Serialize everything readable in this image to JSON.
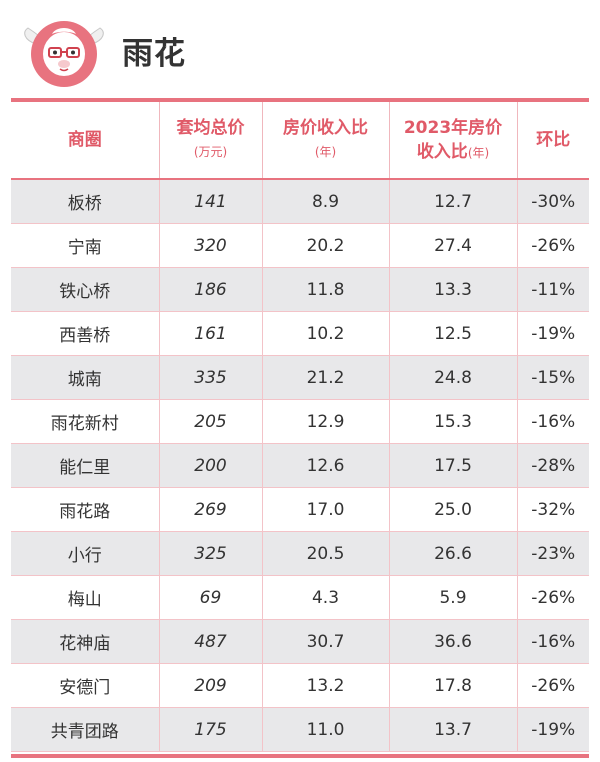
{
  "header": {
    "title": "雨花"
  },
  "table": {
    "columns": [
      {
        "label": "商圈",
        "sub": ""
      },
      {
        "label": "套均总价",
        "sub": "(万元)"
      },
      {
        "label": "房价收入比",
        "sub": "(年)"
      },
      {
        "label": "2023年房价",
        "label2": "收入比",
        "sub": "(年)"
      },
      {
        "label": "环比",
        "sub": ""
      }
    ],
    "rows": [
      [
        "板桥",
        "141",
        "8.9",
        "12.7",
        "-30%"
      ],
      [
        "宁南",
        "320",
        "20.2",
        "27.4",
        "-26%"
      ],
      [
        "铁心桥",
        "186",
        "11.8",
        "13.3",
        "-11%"
      ],
      [
        "西善桥",
        "161",
        "10.2",
        "12.5",
        "-19%"
      ],
      [
        "城南",
        "335",
        "21.2",
        "24.8",
        "-15%"
      ],
      [
        "雨花新村",
        "205",
        "12.9",
        "15.3",
        "-16%"
      ],
      [
        "能仁里",
        "200",
        "12.6",
        "17.5",
        "-28%"
      ],
      [
        "雨花路",
        "269",
        "17.0",
        "25.0",
        "-32%"
      ],
      [
        "小行",
        "325",
        "20.5",
        "26.6",
        "-23%"
      ],
      [
        "梅山",
        "69",
        "4.3",
        "5.9",
        "-26%"
      ],
      [
        "花神庙",
        "487",
        "30.7",
        "36.6",
        "-16%"
      ],
      [
        "安德门",
        "209",
        "13.2",
        "17.8",
        "-26%"
      ],
      [
        "共青团路",
        "175",
        "11.0",
        "13.7",
        "-19%"
      ]
    ]
  },
  "colors": {
    "accent": "#e8737f",
    "header_text": "#e05a68",
    "stripe": "#e8e8ea"
  },
  "icons": {
    "logo": "cartoon-mascot-logo-icon"
  }
}
